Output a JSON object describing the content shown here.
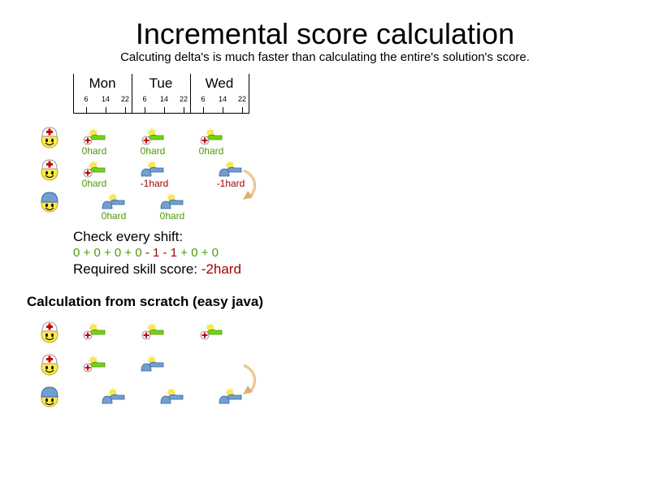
{
  "title": "Incremental score calculation",
  "subtitle": "Calcuting delta's is much faster than calculating the entire's solution's score.",
  "timeline": {
    "days": [
      "Mon",
      "Tue",
      "Wed"
    ],
    "ticks": [
      "6",
      "14",
      "22"
    ]
  },
  "employees_top": [
    {
      "icon": "nurse-smiley-icon"
    },
    {
      "icon": "nurse-smiley-icon"
    },
    {
      "icon": "doctor-smiley-icon"
    }
  ],
  "top_rows": [
    [
      {
        "shift_icon": "nurse-day-shift-icon",
        "score": "0hard",
        "status": "ok"
      },
      {
        "shift_icon": "nurse-day-shift-icon",
        "score": "0hard",
        "status": "ok"
      },
      {
        "shift_icon": "nurse-day-shift-icon",
        "score": "0hard",
        "status": "ok"
      }
    ],
    [
      {
        "shift_icon": "nurse-day-shift-icon",
        "score": "0hard",
        "status": "ok"
      },
      {
        "shift_icon": "doctor-day-shift-icon",
        "score": "-1hard",
        "status": "broken"
      },
      {
        "shift_icon": "doctor-day-shift-icon",
        "score": "-1hard",
        "status": "broken"
      }
    ],
    [
      {
        "shift_icon": "doctor-day-shift-icon",
        "score": "0hard",
        "status": "ok"
      },
      {
        "shift_icon": "doctor-day-shift-icon",
        "score": "0hard",
        "status": "ok"
      }
    ]
  ],
  "check": {
    "label": "Check every shift:",
    "sum_terms": [
      {
        "text": "0",
        "color": "green"
      },
      {
        "text": " + ",
        "color": "green"
      },
      {
        "text": "0",
        "color": "green"
      },
      {
        "text": " + ",
        "color": "green"
      },
      {
        "text": "0",
        "color": "green"
      },
      {
        "text": " + ",
        "color": "green"
      },
      {
        "text": "0",
        "color": "green"
      },
      {
        "text": " - ",
        "color": "red"
      },
      {
        "text": "1",
        "color": "red"
      },
      {
        "text": " - ",
        "color": "red"
      },
      {
        "text": "1",
        "color": "red"
      },
      {
        "text": " + ",
        "color": "green"
      },
      {
        "text": "0",
        "color": "green"
      },
      {
        "text": " + ",
        "color": "green"
      },
      {
        "text": "0",
        "color": "green"
      }
    ],
    "result_label": "Required skill score: ",
    "result_value": "-2hard"
  },
  "section_heading": "Calculation from scratch (easy java)",
  "colors": {
    "ok": "#4e9a06",
    "broken": "#a40000",
    "nurse_shift": "#73d216",
    "doctor_shift": "#729fcf",
    "sun": "#fce94f",
    "arrow": "#e0b070"
  }
}
